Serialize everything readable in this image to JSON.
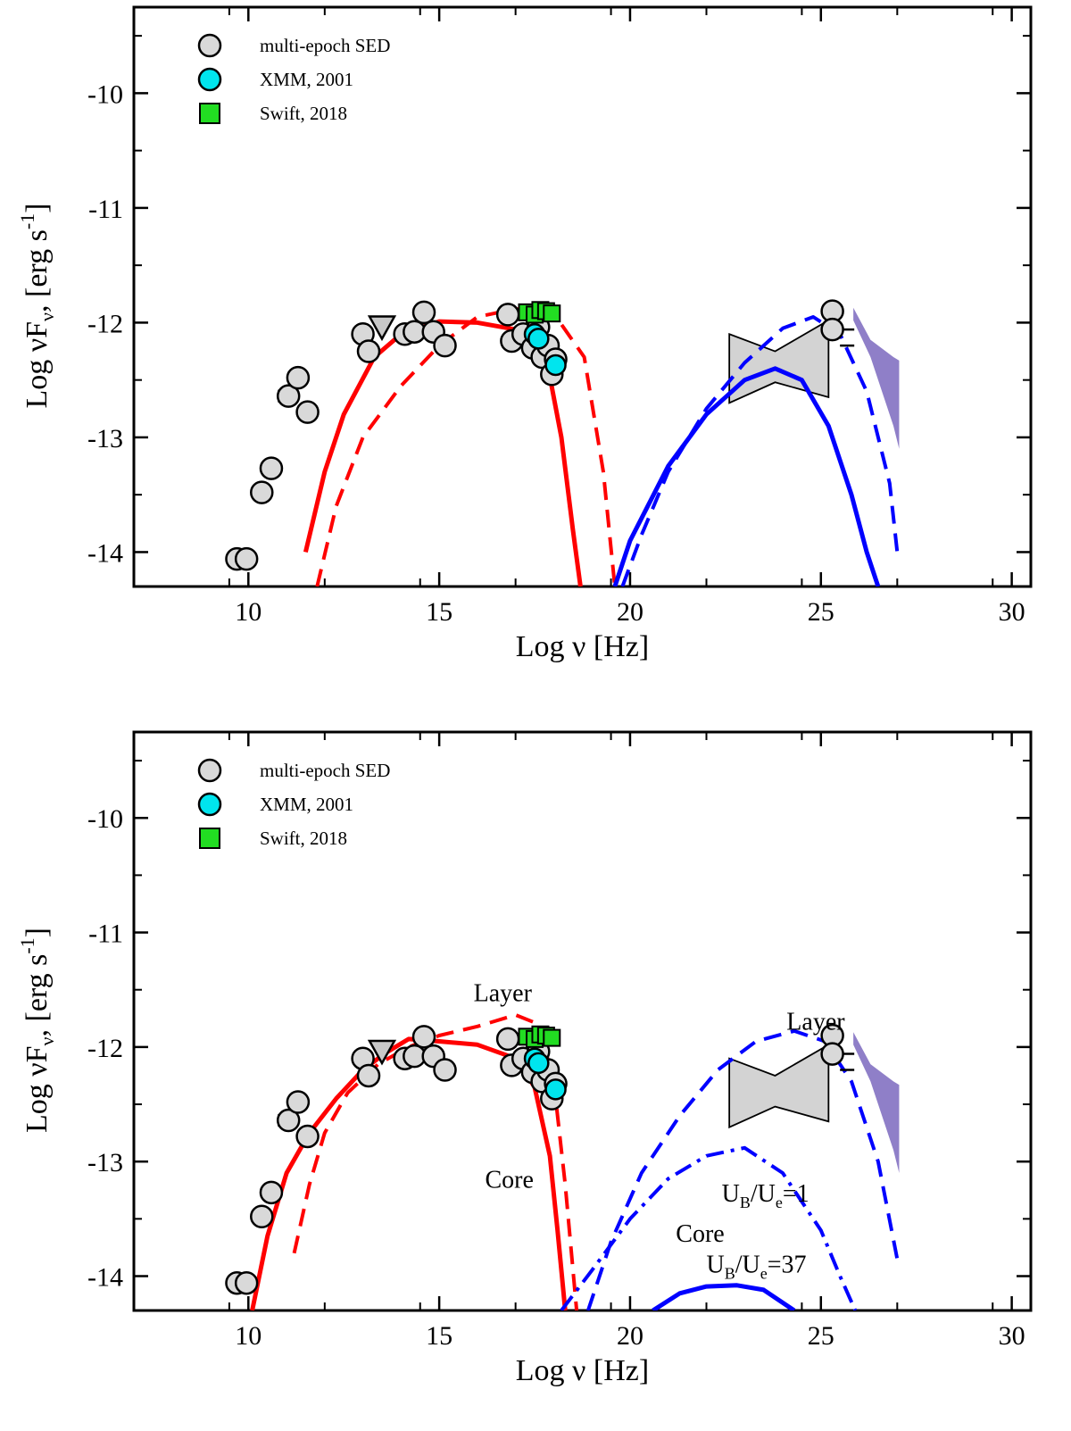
{
  "chart_data": [
    {
      "panel": "top",
      "type": "scatter",
      "xlabel": "Log ν [Hz]",
      "ylabel": {
        "main": "Log νF",
        "sub": "ν",
        "unit": ", [erg s",
        "sup": "-1",
        "close": "]"
      },
      "xlim": [
        7,
        30.5
      ],
      "ylim": [
        -14.3,
        -9.25
      ],
      "xticks": [
        10,
        15,
        20,
        25,
        30
      ],
      "yticks": [
        -14,
        -13,
        -12,
        -11,
        -10
      ],
      "legend": [
        {
          "label": "multi-epoch SED",
          "marker": "circle",
          "color": "#d9d9d9"
        },
        {
          "label": "XMM, 2001",
          "marker": "circle",
          "color": "#00e5ee"
        },
        {
          "label": "Swift, 2018",
          "marker": "square",
          "color": "#22dd22"
        }
      ],
      "legend_position": "top-left",
      "annotations": [],
      "series": [
        {
          "name": "synchrotron-solid",
          "color": "#ff0000",
          "dash": "solid",
          "width": 5,
          "x": [
            11.5,
            12,
            12.5,
            13.3,
            14,
            15,
            16,
            17,
            17.8,
            18.2,
            18.5,
            18.7
          ],
          "y": [
            -14,
            -13.3,
            -12.8,
            -12.3,
            -12.1,
            -11.99,
            -12.0,
            -12.06,
            -12.3,
            -13.0,
            -13.8,
            -14.3
          ]
        },
        {
          "name": "synchrotron-dashed",
          "color": "#ff0000",
          "dash": "dashed",
          "width": 4,
          "x": [
            11.8,
            12.3,
            13,
            14,
            15,
            16,
            17,
            18,
            18.8,
            19.3,
            19.6
          ],
          "y": [
            -14.3,
            -13.6,
            -13.0,
            -12.55,
            -12.2,
            -11.95,
            -11.88,
            -11.92,
            -12.3,
            -13.3,
            -14.3
          ]
        },
        {
          "name": "ic-solid",
          "color": "#0000ff",
          "dash": "solid",
          "width": 5,
          "x": [
            19.6,
            20,
            21,
            22,
            23,
            23.8,
            24.5,
            25.2,
            25.8,
            26.2,
            26.5
          ],
          "y": [
            -14.3,
            -13.9,
            -13.25,
            -12.8,
            -12.5,
            -12.4,
            -12.5,
            -12.9,
            -13.5,
            -14.0,
            -14.3
          ]
        },
        {
          "name": "ic-dashed",
          "color": "#0000ff",
          "dash": "dashed",
          "width": 4,
          "x": [
            19.8,
            20.3,
            21,
            22,
            23,
            24,
            24.8,
            25.5,
            26.2,
            26.8,
            27.0
          ],
          "y": [
            -14.3,
            -13.85,
            -13.3,
            -12.75,
            -12.35,
            -12.05,
            -11.95,
            -12.1,
            -12.6,
            -13.4,
            -14.0
          ]
        }
      ]
    },
    {
      "panel": "bottom",
      "type": "scatter",
      "xlabel": "Log ν [Hz]",
      "ylabel": {
        "main": "Log νF",
        "sub": "ν",
        "unit": ", [erg s",
        "sup": "-1",
        "close": "]"
      },
      "xlim": [
        7,
        30.5
      ],
      "ylim": [
        -14.3,
        -9.25
      ],
      "xticks": [
        10,
        15,
        20,
        25,
        30
      ],
      "yticks": [
        -14,
        -13,
        -12,
        -11,
        -10
      ],
      "legend": [
        {
          "label": "multi-epoch SED",
          "marker": "circle",
          "color": "#d9d9d9"
        },
        {
          "label": "XMM, 2001",
          "marker": "circle",
          "color": "#00e5ee"
        },
        {
          "label": "Swift, 2018",
          "marker": "square",
          "color": "#22dd22"
        }
      ],
      "legend_position": "top-left",
      "annotations": [
        {
          "text": "Layer",
          "x": 15.9,
          "y": -11.6
        },
        {
          "text": "Layer",
          "x": 24.1,
          "y": -11.85
        },
        {
          "text": "Core",
          "x": 16.2,
          "y": -13.23
        },
        {
          "text": "Core",
          "x": 21.2,
          "y": -13.7
        },
        {
          "text": "U",
          "sub": "B",
          "mid": "/U",
          "sub2": "e",
          "tail": "=1",
          "x": 22.4,
          "y": -13.35
        },
        {
          "text": "U",
          "sub": "B",
          "mid": "/U",
          "sub2": "e",
          "tail": "=37",
          "x": 22.0,
          "y": -13.97
        }
      ],
      "series": [
        {
          "name": "core-sync-solid",
          "color": "#ff0000",
          "dash": "solid",
          "width": 5,
          "x": [
            10.1,
            10.5,
            11,
            11.6,
            12.3,
            13,
            13.6,
            14.2,
            15,
            16,
            17,
            17.5,
            17.9,
            18.1,
            18.3
          ],
          "y": [
            -14.3,
            -13.65,
            -13.1,
            -12.75,
            -12.45,
            -12.2,
            -12.05,
            -11.93,
            -11.95,
            -11.98,
            -12.1,
            -12.35,
            -12.95,
            -13.6,
            -14.3
          ]
        },
        {
          "name": "layer-sync-dashed",
          "color": "#ff0000",
          "dash": "dashed",
          "width": 4,
          "x": [
            11.2,
            11.6,
            12,
            12.6,
            13.4,
            14.2,
            15,
            16,
            17,
            17.6,
            18.0,
            18.3,
            18.6
          ],
          "y": [
            -13.8,
            -13.2,
            -12.75,
            -12.4,
            -12.15,
            -12.0,
            -11.9,
            -11.82,
            -11.72,
            -11.8,
            -12.3,
            -13.2,
            -14.3
          ]
        },
        {
          "name": "layer-ic-dashed",
          "color": "#0000ff",
          "dash": "dashed",
          "width": 4,
          "x": [
            18.9,
            19.5,
            20.3,
            21.3,
            22.3,
            23.3,
            24.3,
            25.1,
            25.8,
            26.5,
            27.0
          ],
          "y": [
            -14.3,
            -13.7,
            -13.1,
            -12.6,
            -12.2,
            -11.95,
            -11.86,
            -11.95,
            -12.3,
            -13.0,
            -13.85
          ]
        },
        {
          "name": "core-ic-dashdot-ub1",
          "color": "#0000ff",
          "dash": "dashdot",
          "width": 4,
          "x": [
            18.2,
            19,
            20,
            21,
            22,
            23,
            24,
            25,
            25.5,
            25.9
          ],
          "y": [
            -14.3,
            -13.95,
            -13.5,
            -13.15,
            -12.95,
            -12.88,
            -13.1,
            -13.6,
            -14.0,
            -14.3
          ]
        },
        {
          "name": "core-ic-solid-ub37",
          "color": "#0000ff",
          "dash": "solid",
          "width": 5,
          "x": [
            20.6,
            21.3,
            22,
            22.8,
            23.5,
            24.3
          ],
          "y": [
            -14.3,
            -14.15,
            -14.09,
            -14.08,
            -14.12,
            -14.3
          ]
        }
      ]
    }
  ],
  "observations": {
    "sed_points": [
      {
        "x": 9.7,
        "y": -14.06
      },
      {
        "x": 9.95,
        "y": -14.06
      },
      {
        "x": 10.35,
        "y": -13.48
      },
      {
        "x": 10.6,
        "y": -13.27
      },
      {
        "x": 11.05,
        "y": -12.64,
        "xerr": 0.25
      },
      {
        "x": 11.3,
        "y": -12.48
      },
      {
        "x": 11.55,
        "y": -12.78
      },
      {
        "x": 13.0,
        "y": -12.1
      },
      {
        "x": 13.15,
        "y": -12.25
      },
      {
        "x": 14.1,
        "y": -12.1
      },
      {
        "x": 14.35,
        "y": -12.08
      },
      {
        "x": 14.6,
        "y": -11.91
      },
      {
        "x": 14.85,
        "y": -12.08,
        "xerr": 0.2
      },
      {
        "x": 15.15,
        "y": -12.2
      },
      {
        "x": 16.8,
        "y": -11.93
      },
      {
        "x": 16.9,
        "y": -12.16
      },
      {
        "x": 17.2,
        "y": -12.1
      },
      {
        "x": 17.45,
        "y": -12.22
      },
      {
        "x": 17.6,
        "y": -12.04
      },
      {
        "x": 17.7,
        "y": -12.3
      },
      {
        "x": 17.85,
        "y": -12.2
      },
      {
        "x": 17.95,
        "y": -12.45
      },
      {
        "x": 18.05,
        "y": -12.32
      },
      {
        "x": 25.3,
        "y": -11.9
      },
      {
        "x": 25.3,
        "y": -12.06
      }
    ],
    "upper_limit": {
      "x": 13.5,
      "y": -12.04
    },
    "xmm_points": [
      {
        "x": 17.5,
        "y": -12.1
      },
      {
        "x": 17.6,
        "y": -12.14
      },
      {
        "x": 18.05,
        "y": -12.37
      }
    ],
    "swift_points": [
      {
        "x": 17.3,
        "y": -11.91
      },
      {
        "x": 17.5,
        "y": -11.93
      },
      {
        "x": 17.65,
        "y": -11.89
      },
      {
        "x": 17.8,
        "y": -11.9
      },
      {
        "x": 17.95,
        "y": -11.92
      }
    ],
    "fermi_bowtie": {
      "x": [
        22.6,
        23.8,
        25.2
      ],
      "upper": [
        -12.1,
        -12.25,
        -11.98
      ],
      "lower": [
        -12.7,
        -12.52,
        -12.65
      ]
    },
    "tev_band": {
      "x": [
        25.85,
        26.3,
        26.9,
        27.05
      ],
      "upper": [
        -11.87,
        -12.15,
        -12.3,
        -12.33
      ],
      "lower": [
        -11.98,
        -12.3,
        -12.9,
        -13.1
      ]
    },
    "tev_bracket": {
      "x": 25.5,
      "y": -12.2
    }
  }
}
